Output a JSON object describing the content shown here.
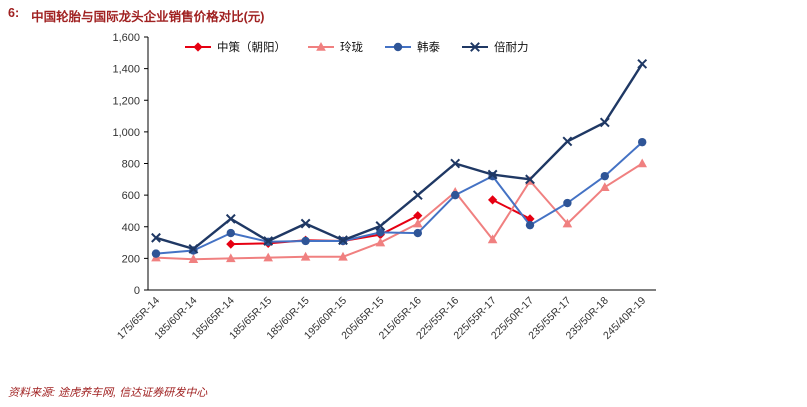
{
  "figure": {
    "label": "6:",
    "title": "中国轮胎与国际龙头企业销售价格对比(元)",
    "source": "资料来源: 途虎养车网, 信达证券研发中心"
  },
  "colors": {
    "title_accent": "#a02121",
    "axis": "#000000",
    "tick_text": "#333333"
  },
  "chart_data": {
    "type": "line",
    "title": "中国轮胎与国际龙头企业销售价格对比(元)",
    "xlabel": "",
    "ylabel": "",
    "ylim": [
      0,
      1600
    ],
    "ytick_step": 200,
    "yticks": [
      "0",
      "200",
      "400",
      "600",
      "800",
      "1,000",
      "1,200",
      "1,400",
      "1,600"
    ],
    "grid": false,
    "legend_position": "top-center",
    "categories": [
      "175/65R-14",
      "185/60R-14",
      "185/65R-14",
      "185/65R-15",
      "185/60R-15",
      "195/60R-15",
      "205/65R-15",
      "215/65R-16",
      "225/55R-16",
      "225/55R-17",
      "225/50R-17",
      "235/55R-17",
      "235/50R-18",
      "245/40R-19"
    ],
    "series": [
      {
        "id": "zhongce",
        "name": "中策（朝阳）",
        "color": "#e60012",
        "marker": "diamond",
        "values": [
          null,
          null,
          290,
          295,
          315,
          310,
          350,
          470,
          null,
          570,
          450,
          null,
          null,
          null
        ]
      },
      {
        "id": "linglong",
        "name": "玲珑",
        "color": "#f08080",
        "marker": "triangle",
        "values": [
          205,
          195,
          200,
          205,
          210,
          210,
          300,
          420,
          620,
          320,
          690,
          420,
          650,
          800
        ]
      },
      {
        "id": "hantai",
        "name": "韩泰",
        "color": "#4472c4",
        "marker_color": "#2f5597",
        "marker": "circle",
        "values": [
          230,
          250,
          360,
          305,
          310,
          310,
          365,
          360,
          600,
          720,
          410,
          550,
          720,
          935
        ]
      },
      {
        "id": "pirelli",
        "name": "倍耐力",
        "color": "#1f3864",
        "marker": "x",
        "values": [
          330,
          260,
          450,
          310,
          420,
          315,
          405,
          600,
          800,
          730,
          700,
          940,
          1060,
          1430
        ]
      }
    ]
  }
}
